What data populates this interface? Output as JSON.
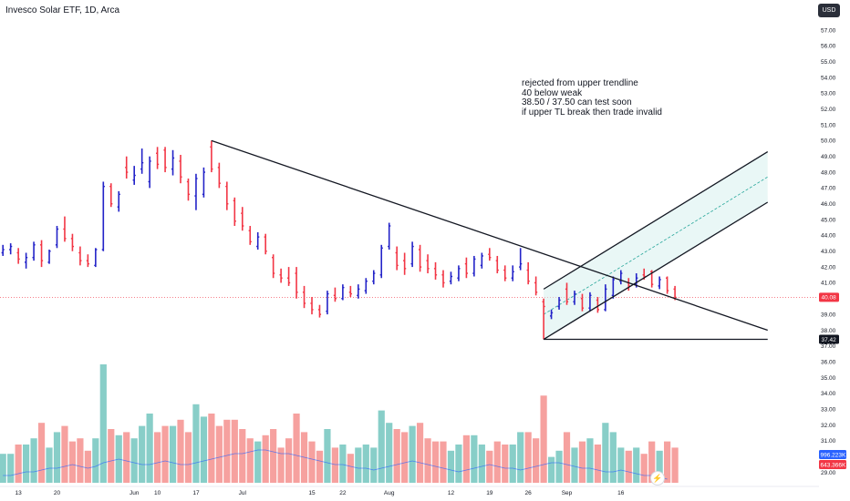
{
  "header": {
    "title": "Invesco Solar ETF, 1D, Arca",
    "currency": "USD"
  },
  "annotation": {
    "lines": [
      "rejected from upper trendline",
      "40 below weak",
      "38.50 / 37.50 can test soon",
      "if upper TL break then trade invalid"
    ]
  },
  "colors": {
    "up": "#2323c8",
    "down": "#f23645",
    "volume_up": "#26a69a",
    "volume_down": "#ef5350",
    "trendline": "#131722",
    "volume_ma": "#2962ff",
    "price_line": "#f23645"
  },
  "chart_data": {
    "type": "ohlc",
    "y_axis": {
      "labels": [
        "57.00",
        "56.00",
        "55.00",
        "54.00",
        "53.00",
        "52.00",
        "51.00",
        "50.00",
        "49.00",
        "48.00",
        "47.00",
        "46.00",
        "45.00",
        "44.00",
        "43.00",
        "42.00",
        "41.00",
        "40.00",
        "39.00",
        "38.00",
        "37.00",
        "36.00",
        "35.00",
        "34.00",
        "33.00",
        "32.00",
        "31.00",
        "30.00",
        "29.00"
      ],
      "range": [
        28.7,
        57.8
      ]
    },
    "x_axis": {
      "ticks": [
        {
          "label": "13",
          "i": 2
        },
        {
          "label": "20",
          "i": 7
        },
        {
          "label": "Jun",
          "i": 17
        },
        {
          "label": "10",
          "i": 20
        },
        {
          "label": "17",
          "i": 25
        },
        {
          "label": "Jul",
          "i": 31
        },
        {
          "label": "15",
          "i": 40
        },
        {
          "label": "22",
          "i": 44
        },
        {
          "label": "Aug",
          "i": 50
        },
        {
          "label": "12",
          "i": 58
        },
        {
          "label": "19",
          "i": 63
        },
        {
          "label": "26",
          "i": 68
        },
        {
          "label": "Sep",
          "i": 73
        },
        {
          "label": "16",
          "i": 80
        }
      ]
    },
    "price_tags": [
      {
        "value": 40.08,
        "label": "40.08",
        "color": "#f23645"
      },
      {
        "value": 37.42,
        "label": "37.42",
        "color": "#131722"
      }
    ],
    "volume_tags": [
      {
        "label": "996.223K",
        "color": "#2962ff"
      },
      {
        "label": "643.366K",
        "color": "#f23645"
      }
    ],
    "bars": [
      {
        "o": 42.9,
        "h": 43.4,
        "l": 42.7,
        "c": 43.1
      },
      {
        "o": 43.1,
        "h": 43.5,
        "l": 42.8,
        "c": 43.3
      },
      {
        "o": 42.9,
        "h": 43.2,
        "l": 42.2,
        "c": 42.5
      },
      {
        "o": 42.3,
        "h": 42.9,
        "l": 41.9,
        "c": 42.6
      },
      {
        "o": 42.6,
        "h": 43.6,
        "l": 42.4,
        "c": 43.4
      },
      {
        "o": 43.4,
        "h": 43.7,
        "l": 42.0,
        "c": 42.4
      },
      {
        "o": 42.3,
        "h": 43.1,
        "l": 42.2,
        "c": 43.0
      },
      {
        "o": 43.4,
        "h": 44.6,
        "l": 43.2,
        "c": 44.4
      },
      {
        "o": 44.4,
        "h": 45.2,
        "l": 43.6,
        "c": 43.8
      },
      {
        "o": 43.8,
        "h": 44.1,
        "l": 43.0,
        "c": 43.3
      },
      {
        "o": 42.9,
        "h": 43.3,
        "l": 42.1,
        "c": 42.4
      },
      {
        "o": 42.4,
        "h": 42.8,
        "l": 42.0,
        "c": 42.2
      },
      {
        "o": 42.1,
        "h": 43.2,
        "l": 42.0,
        "c": 43.1
      },
      {
        "o": 43.1,
        "h": 47.4,
        "l": 43.0,
        "c": 47.1
      },
      {
        "o": 47.1,
        "h": 47.3,
        "l": 45.8,
        "c": 46.0
      },
      {
        "o": 45.8,
        "h": 46.8,
        "l": 45.5,
        "c": 46.6
      },
      {
        "o": 48.3,
        "h": 49.0,
        "l": 47.6,
        "c": 48.0
      },
      {
        "o": 47.5,
        "h": 48.4,
        "l": 47.2,
        "c": 47.8
      },
      {
        "o": 48.2,
        "h": 49.5,
        "l": 47.9,
        "c": 48.6
      },
      {
        "o": 47.4,
        "h": 49.0,
        "l": 47.0,
        "c": 48.7
      },
      {
        "o": 49.2,
        "h": 49.6,
        "l": 48.2,
        "c": 48.5
      },
      {
        "o": 49.4,
        "h": 49.6,
        "l": 48.0,
        "c": 48.3
      },
      {
        "o": 48.2,
        "h": 49.4,
        "l": 47.8,
        "c": 48.9
      },
      {
        "o": 48.7,
        "h": 49.1,
        "l": 47.3,
        "c": 47.7
      },
      {
        "o": 47.4,
        "h": 47.6,
        "l": 46.2,
        "c": 46.6
      },
      {
        "o": 46.5,
        "h": 47.9,
        "l": 45.6,
        "c": 47.6
      },
      {
        "o": 46.6,
        "h": 48.3,
        "l": 46.4,
        "c": 48.0
      },
      {
        "o": 49.6,
        "h": 50.0,
        "l": 48.0,
        "c": 48.2
      },
      {
        "o": 48.3,
        "h": 48.6,
        "l": 47.0,
        "c": 47.3
      },
      {
        "o": 47.1,
        "h": 47.4,
        "l": 45.6,
        "c": 46.0
      },
      {
        "o": 46.2,
        "h": 46.4,
        "l": 44.6,
        "c": 44.9
      },
      {
        "o": 45.4,
        "h": 45.8,
        "l": 44.3,
        "c": 44.6
      },
      {
        "o": 44.3,
        "h": 44.6,
        "l": 43.4,
        "c": 43.6
      },
      {
        "o": 43.3,
        "h": 44.2,
        "l": 43.1,
        "c": 43.9
      },
      {
        "o": 43.9,
        "h": 44.1,
        "l": 42.8,
        "c": 43.0
      },
      {
        "o": 42.6,
        "h": 42.8,
        "l": 41.3,
        "c": 41.6
      },
      {
        "o": 41.5,
        "h": 41.9,
        "l": 41.0,
        "c": 41.3
      },
      {
        "o": 41.3,
        "h": 42.0,
        "l": 40.8,
        "c": 41.0
      },
      {
        "o": 41.6,
        "h": 42.0,
        "l": 40.0,
        "c": 40.4
      },
      {
        "o": 40.4,
        "h": 40.8,
        "l": 39.4,
        "c": 39.7
      },
      {
        "o": 39.7,
        "h": 40.1,
        "l": 39.0,
        "c": 39.3
      },
      {
        "o": 39.3,
        "h": 39.6,
        "l": 38.8,
        "c": 39.0
      },
      {
        "o": 39.2,
        "h": 40.5,
        "l": 39.0,
        "c": 40.3
      },
      {
        "o": 40.2,
        "h": 40.7,
        "l": 39.8,
        "c": 40.0
      },
      {
        "o": 40.0,
        "h": 40.9,
        "l": 39.9,
        "c": 40.7
      },
      {
        "o": 40.4,
        "h": 40.8,
        "l": 40.1,
        "c": 40.3
      },
      {
        "o": 40.2,
        "h": 40.9,
        "l": 40.0,
        "c": 40.6
      },
      {
        "o": 40.5,
        "h": 41.3,
        "l": 40.3,
        "c": 41.1
      },
      {
        "o": 41.1,
        "h": 41.8,
        "l": 40.9,
        "c": 41.6
      },
      {
        "o": 41.5,
        "h": 43.4,
        "l": 41.3,
        "c": 43.2
      },
      {
        "o": 43.3,
        "h": 44.8,
        "l": 43.1,
        "c": 44.6
      },
      {
        "o": 42.9,
        "h": 43.3,
        "l": 41.8,
        "c": 42.1
      },
      {
        "o": 42.4,
        "h": 42.9,
        "l": 41.5,
        "c": 41.9
      },
      {
        "o": 42.2,
        "h": 43.6,
        "l": 42.0,
        "c": 43.3
      },
      {
        "o": 43.1,
        "h": 43.4,
        "l": 41.7,
        "c": 42.0
      },
      {
        "o": 42.4,
        "h": 42.8,
        "l": 41.6,
        "c": 41.9
      },
      {
        "o": 41.9,
        "h": 42.3,
        "l": 41.2,
        "c": 41.5
      },
      {
        "o": 41.5,
        "h": 41.8,
        "l": 40.7,
        "c": 41.0
      },
      {
        "o": 41.1,
        "h": 41.7,
        "l": 40.9,
        "c": 41.4
      },
      {
        "o": 41.3,
        "h": 42.1,
        "l": 41.1,
        "c": 41.9
      },
      {
        "o": 42.2,
        "h": 42.6,
        "l": 41.3,
        "c": 41.6
      },
      {
        "o": 41.6,
        "h": 42.7,
        "l": 41.4,
        "c": 42.5
      },
      {
        "o": 42.1,
        "h": 42.9,
        "l": 41.9,
        "c": 42.7
      },
      {
        "o": 42.8,
        "h": 43.2,
        "l": 42.4,
        "c": 42.6
      },
      {
        "o": 42.4,
        "h": 42.7,
        "l": 41.6,
        "c": 41.8
      },
      {
        "o": 41.8,
        "h": 42.1,
        "l": 41.1,
        "c": 41.3
      },
      {
        "o": 41.3,
        "h": 42.1,
        "l": 41.1,
        "c": 41.7
      },
      {
        "o": 42.0,
        "h": 43.2,
        "l": 41.8,
        "c": 42.2
      },
      {
        "o": 41.8,
        "h": 42.3,
        "l": 40.9,
        "c": 41.1
      },
      {
        "o": 41.0,
        "h": 41.4,
        "l": 40.2,
        "c": 40.4
      },
      {
        "o": 39.8,
        "h": 40.0,
        "l": 37.42,
        "c": 39.5
      },
      {
        "o": 38.9,
        "h": 39.3,
        "l": 38.7,
        "c": 39.1
      },
      {
        "o": 39.5,
        "h": 40.1,
        "l": 39.3,
        "c": 39.9
      },
      {
        "o": 40.6,
        "h": 41.0,
        "l": 39.6,
        "c": 39.8
      },
      {
        "o": 39.8,
        "h": 40.5,
        "l": 39.6,
        "c": 40.3
      },
      {
        "o": 40.0,
        "h": 40.3,
        "l": 39.2,
        "c": 39.4
      },
      {
        "o": 39.4,
        "h": 40.4,
        "l": 39.2,
        "c": 40.2
      },
      {
        "o": 39.9,
        "h": 40.1,
        "l": 39.1,
        "c": 39.3
      },
      {
        "o": 39.3,
        "h": 40.9,
        "l": 39.2,
        "c": 40.6
      },
      {
        "o": 40.2,
        "h": 41.4,
        "l": 40.0,
        "c": 41.2
      },
      {
        "o": 41.1,
        "h": 41.8,
        "l": 40.9,
        "c": 41.6
      },
      {
        "o": 41.0,
        "h": 41.3,
        "l": 40.5,
        "c": 40.8
      },
      {
        "o": 40.9,
        "h": 41.6,
        "l": 40.7,
        "c": 41.3
      },
      {
        "o": 41.5,
        "h": 41.9,
        "l": 41.2,
        "c": 41.4
      },
      {
        "o": 41.7,
        "h": 41.8,
        "l": 40.7,
        "c": 40.9
      },
      {
        "o": 40.8,
        "h": 41.4,
        "l": 40.6,
        "c": 41.2
      },
      {
        "o": 41.3,
        "h": 41.4,
        "l": 40.3,
        "c": 40.5
      },
      {
        "o": 40.6,
        "h": 40.8,
        "l": 39.9,
        "c": 40.08
      }
    ],
    "volume_ma": [
      28.7,
      28.7,
      28.75,
      28.8,
      28.8,
      28.85,
      28.9,
      28.9,
      28.95,
      29.0,
      28.95,
      28.9,
      28.95,
      29.05,
      29.1,
      29.15,
      29.1,
      29.05,
      29.0,
      29.0,
      29.05,
      29.1,
      29.05,
      29.0,
      29.0,
      29.05,
      29.1,
      29.15,
      29.2,
      29.25,
      29.3,
      29.3,
      29.35,
      29.4,
      29.4,
      29.35,
      29.3,
      29.3,
      29.25,
      29.2,
      29.15,
      29.1,
      29.05,
      29.0,
      29.0,
      28.95,
      28.9,
      28.9,
      28.85,
      28.9,
      28.95,
      29.0,
      29.05,
      29.1,
      29.05,
      29.0,
      28.95,
      28.9,
      28.85,
      28.8,
      28.85,
      28.9,
      28.95,
      29.0,
      28.95,
      28.9,
      28.9,
      28.85,
      28.9,
      28.95,
      29.0,
      29.05,
      29.05,
      29.0,
      28.95,
      28.9,
      28.9,
      28.85,
      28.8,
      28.8,
      28.85,
      28.8,
      28.75,
      28.7,
      28.7,
      28.65,
      28.6
    ],
    "trendlines": [
      {
        "name": "descending-trendline",
        "from": {
          "i": 27,
          "v": 50.0
        },
        "to": {
          "i": 99,
          "v": 38.0
        }
      },
      {
        "name": "support-line",
        "from": {
          "i": 70,
          "v": 37.42
        },
        "to": {
          "i": 99,
          "v": 37.42
        }
      },
      {
        "name": "channel-upper",
        "from": {
          "i": 70,
          "v": 40.6
        },
        "to": {
          "i": 99,
          "v": 49.3
        }
      },
      {
        "name": "channel-lower",
        "from": {
          "i": 70,
          "v": 37.42
        },
        "to": {
          "i": 99,
          "v": 46.1
        }
      }
    ],
    "channel_mid": {
      "from": {
        "i": 70,
        "v": 39.0
      },
      "to": {
        "i": 99,
        "v": 47.7
      }
    }
  }
}
